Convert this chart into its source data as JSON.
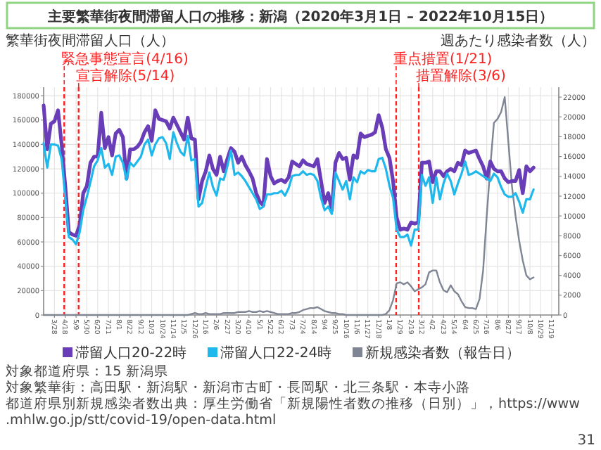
{
  "chart_data": {
    "type": "line",
    "title": "主要繁華街夜間滞留人口の推移：新潟（2020年3月1日 – 2022年10月15日）",
    "ylabel": "繁華街夜間滞留人口（人）",
    "y2label": "週あたり感染者数（人）",
    "x": [
      "2020-03-07",
      "2020-03-14",
      "2020-03-21",
      "2020-03-28",
      "2020-04-04",
      "2020-04-11",
      "2020-04-18",
      "2020-04-25",
      "2020-05-02",
      "2020-05-09",
      "2020-05-16",
      "2020-05-23",
      "2020-05-30",
      "2020-06-06",
      "2020-06-13",
      "2020-06-20",
      "2020-06-27",
      "2020-07-04",
      "2020-07-11",
      "2020-07-18",
      "2020-07-25",
      "2020-08-01",
      "2020-08-08",
      "2020-08-15",
      "2020-08-22",
      "2020-08-29",
      "2020-09-05",
      "2020-09-12",
      "2020-09-19",
      "2020-09-26",
      "2020-10-03",
      "2020-10-10",
      "2020-10-17",
      "2020-10-24",
      "2020-10-31",
      "2020-11-07",
      "2020-11-14",
      "2020-11-21",
      "2020-11-28",
      "2020-12-05",
      "2020-12-12",
      "2020-12-19",
      "2020-12-26",
      "2021-01-02",
      "2021-01-09",
      "2021-01-16",
      "2021-01-23",
      "2021-01-30",
      "2021-02-06",
      "2021-02-13",
      "2021-02-20",
      "2021-02-27",
      "2021-03-06",
      "2021-03-13",
      "2021-03-20",
      "2021-03-27",
      "2021-04-03",
      "2021-04-10",
      "2021-04-17",
      "2021-04-24",
      "2021-05-01",
      "2021-05-08",
      "2021-05-15",
      "2021-05-22",
      "2021-05-29",
      "2021-06-05",
      "2021-06-12",
      "2021-06-19",
      "2021-06-26",
      "2021-07-03",
      "2021-07-10",
      "2021-07-17",
      "2021-07-24",
      "2021-07-31",
      "2021-08-07",
      "2021-08-14",
      "2021-08-21",
      "2021-08-28",
      "2021-09-04",
      "2021-09-11",
      "2021-09-18",
      "2021-09-25",
      "2021-10-02",
      "2021-10-09",
      "2021-10-16",
      "2021-10-23",
      "2021-10-30",
      "2021-11-06",
      "2021-11-13",
      "2021-11-20",
      "2021-11-27",
      "2021-12-04",
      "2021-12-11",
      "2021-12-18",
      "2021-12-25",
      "2022-01-01",
      "2022-01-08",
      "2022-01-15",
      "2022-01-22",
      "2022-01-29",
      "2022-02-05",
      "2022-02-12",
      "2022-02-19",
      "2022-02-26",
      "2022-03-05",
      "2022-03-12",
      "2022-03-19",
      "2022-03-26",
      "2022-04-02",
      "2022-04-09",
      "2022-04-16",
      "2022-04-23",
      "2022-04-30",
      "2022-05-07",
      "2022-05-14",
      "2022-05-21",
      "2022-05-28",
      "2022-06-04",
      "2022-06-11",
      "2022-06-18",
      "2022-06-25",
      "2022-07-02",
      "2022-07-09",
      "2022-07-16",
      "2022-07-23",
      "2022-07-30",
      "2022-08-06",
      "2022-08-13",
      "2022-08-20",
      "2022-08-27",
      "2022-09-03",
      "2022-09-10",
      "2022-09-17",
      "2022-09-24",
      "2022-10-01",
      "2022-10-08",
      "2022-10-15"
    ],
    "series": [
      {
        "name": "滞留人口20-22時",
        "color": "#6a3db8",
        "values": [
          172000,
          136000,
          157000,
          159000,
          168000,
          140000,
          106000,
          68000,
          66000,
          65000,
          74000,
          100000,
          106000,
          125000,
          130000,
          130000,
          166000,
          137000,
          146000,
          131000,
          149000,
          152000,
          146000,
          112000,
          136000,
          136000,
          138000,
          142000,
          150000,
          155000,
          143000,
          168000,
          161000,
          160000,
          159000,
          153000,
          162000,
          156000,
          150000,
          144000,
          162000,
          145000,
          144000,
          95000,
          110000,
          118000,
          131000,
          120000,
          115000,
          130000,
          118000,
          128000,
          137000,
          134000,
          125000,
          130000,
          123000,
          118000,
          112000,
          100000,
          93000,
          90000,
          128000,
          114000,
          108000,
          110000,
          111000,
          109000,
          113000,
          126000,
          124000,
          122000,
          127000,
          124000,
          123000,
          122000,
          128000,
          110000,
          92000,
          100000,
          86000,
          125000,
          133000,
          128000,
          129000,
          111000,
          131000,
          129000,
          149000,
          146000,
          147000,
          148000,
          150000,
          164000,
          154000,
          136000,
          129000,
          110000,
          80000,
          70000,
          71000,
          70000,
          76000,
          75000,
          76000,
          125000,
          125000,
          126000,
          109000,
          118000,
          118000,
          114000,
          118000,
          120000,
          118000,
          125000,
          123000,
          135000,
          133000,
          134000,
          135000,
          128000,
          122000,
          112000,
          126000,
          120000,
          118000,
          118000,
          112000,
          109000,
          110000,
          110000,
          119000,
          100000,
          122000,
          118000,
          121000
        ]
      },
      {
        "name": "滞留人口22-24時",
        "color": "#1fb8ec",
        "values": [
          141000,
          121000,
          140000,
          140000,
          139000,
          128000,
          97000,
          64000,
          62000,
          58000,
          68000,
          86000,
          97000,
          109000,
          122000,
          127000,
          137000,
          121000,
          124000,
          115000,
          130000,
          131000,
          125000,
          111000,
          125000,
          122000,
          126000,
          130000,
          140000,
          144000,
          131000,
          140000,
          145000,
          146000,
          141000,
          128000,
          150000,
          141000,
          134000,
          131000,
          147000,
          127000,
          128000,
          89000,
          92000,
          105000,
          117000,
          105000,
          98000,
          112000,
          111000,
          122000,
          135000,
          115000,
          117000,
          114000,
          110000,
          105000,
          100000,
          95000,
          87000,
          89000,
          99000,
          99000,
          100000,
          100000,
          102000,
          98000,
          104000,
          114000,
          115000,
          115000,
          118000,
          115000,
          116000,
          115000,
          110000,
          96000,
          86000,
          89000,
          83000,
          117000,
          110000,
          103000,
          110000,
          95000,
          113000,
          109000,
          118000,
          116000,
          119000,
          118000,
          118000,
          128000,
          129000,
          120000,
          106000,
          96000,
          70000,
          64000,
          64000,
          66000,
          57000,
          70000,
          70000,
          115000,
          106000,
          113000,
          92000,
          113000,
          95000,
          108000,
          116000,
          110000,
          99000,
          108000,
          116000,
          126000,
          115000,
          116000,
          118000,
          116000,
          114000,
          112000,
          110000,
          116000,
          113000,
          105000,
          99000,
          97000,
          97000,
          100000,
          93000,
          84000,
          95000,
          95000,
          103000
        ]
      },
      {
        "name": "新規感染者数（報告日）",
        "color": "#7f8593",
        "axis": "y2",
        "values": [
          0,
          0,
          0,
          0,
          0,
          0,
          0,
          0,
          0,
          0,
          0,
          0,
          0,
          0,
          0,
          0,
          0,
          0,
          0,
          0,
          0,
          0,
          0,
          0,
          0,
          0,
          0,
          0,
          0,
          0,
          0,
          0,
          0,
          0,
          0,
          0,
          0,
          0,
          0,
          0,
          0,
          100,
          200,
          100,
          100,
          200,
          100,
          100,
          100,
          100,
          200,
          200,
          200,
          200,
          300,
          300,
          300,
          400,
          300,
          300,
          400,
          300,
          400,
          300,
          200,
          100,
          100,
          100,
          100,
          200,
          200,
          300,
          500,
          600,
          700,
          700,
          800,
          600,
          400,
          300,
          200,
          200,
          100,
          100,
          0,
          0,
          0,
          0,
          0,
          0,
          0,
          0,
          0,
          0,
          0,
          100,
          500,
          1500,
          3200,
          3300,
          3100,
          3300,
          2900,
          2400,
          2600,
          2800,
          3100,
          4300,
          4500,
          4500,
          3300,
          2500,
          2300,
          3000,
          2400,
          2100,
          1400,
          800,
          700,
          700,
          600,
          1600,
          4500,
          10000,
          15000,
          19400,
          19800,
          20500,
          22000,
          17500,
          13000,
          10000,
          7500,
          5500,
          4000,
          3600,
          3800
        ]
      }
    ],
    "xlim": [
      "2020-03-07",
      "2022-12-03"
    ],
    "xticks": [
      {
        "value": "2020-03-28",
        "label": "3/28"
      },
      {
        "value": "2020-04-18",
        "label": "4/18"
      },
      {
        "value": "2020-05-09",
        "label": "5/9"
      },
      {
        "value": "2020-05-30",
        "label": "5/30"
      },
      {
        "value": "2020-06-20",
        "label": "6/20"
      },
      {
        "value": "2020-07-11",
        "label": "7/11"
      },
      {
        "value": "2020-08-01",
        "label": "8/1"
      },
      {
        "value": "2020-08-22",
        "label": "8/22"
      },
      {
        "value": "2020-09-12",
        "label": "9/12"
      },
      {
        "value": "2020-10-03",
        "label": "10/3"
      },
      {
        "value": "2020-10-24",
        "label": "10/24"
      },
      {
        "value": "2020-11-14",
        "label": "11/14"
      },
      {
        "value": "2020-12-05",
        "label": "12/5"
      },
      {
        "value": "2020-12-26",
        "label": "12/26"
      },
      {
        "value": "2021-01-16",
        "label": "1/16"
      },
      {
        "value": "2021-02-06",
        "label": "2/6"
      },
      {
        "value": "2021-02-27",
        "label": "2/27"
      },
      {
        "value": "2021-03-20",
        "label": "3/20"
      },
      {
        "value": "2021-04-10",
        "label": "4/10"
      },
      {
        "value": "2021-05-01",
        "label": "5/1"
      },
      {
        "value": "2021-05-22",
        "label": "5/22"
      },
      {
        "value": "2021-06-12",
        "label": "6/12"
      },
      {
        "value": "2021-07-03",
        "label": "7/3"
      },
      {
        "value": "2021-07-24",
        "label": "7/24"
      },
      {
        "value": "2021-08-14",
        "label": "8/14"
      },
      {
        "value": "2021-09-04",
        "label": "9/4"
      },
      {
        "value": "2021-09-25",
        "label": "9/25"
      },
      {
        "value": "2021-10-16",
        "label": "10/16"
      },
      {
        "value": "2021-11-06",
        "label": "11/6"
      },
      {
        "value": "2021-11-27",
        "label": "11/27"
      },
      {
        "value": "2021-12-18",
        "label": "12/18"
      },
      {
        "value": "2022-01-08",
        "label": "1/8"
      },
      {
        "value": "2022-01-29",
        "label": "1/29"
      },
      {
        "value": "2022-02-19",
        "label": "2/19"
      },
      {
        "value": "2022-03-12",
        "label": "3/12"
      },
      {
        "value": "2022-04-02",
        "label": "4/2"
      },
      {
        "value": "2022-04-23",
        "label": "4/23"
      },
      {
        "value": "2022-05-14",
        "label": "5/14"
      },
      {
        "value": "2022-06-04",
        "label": "6/4"
      },
      {
        "value": "2022-06-25",
        "label": "6/25"
      },
      {
        "value": "2022-07-16",
        "label": "7/16"
      },
      {
        "value": "2022-08-06",
        "label": "8/6"
      },
      {
        "value": "2022-08-27",
        "label": "8/27"
      },
      {
        "value": "2022-09-17",
        "label": "9/17"
      },
      {
        "value": "2022-10-08",
        "label": "10/8"
      },
      {
        "value": "2022-10-29",
        "label": "10/29"
      },
      {
        "value": "2022-11-19",
        "label": "11/19"
      }
    ],
    "ylim": [
      0,
      187000
    ],
    "yticks": [
      0,
      20000,
      40000,
      60000,
      80000,
      100000,
      120000,
      140000,
      160000,
      180000
    ],
    "y2lim": [
      0,
      23000
    ],
    "y2ticks": [
      0,
      2000,
      4000,
      6000,
      8000,
      10000,
      12000,
      14000,
      16000,
      18000,
      20000,
      22000
    ],
    "ref_lines": [
      {
        "axis": "x",
        "value": "2020-04-16",
        "label": "緊急事態宣言(4/16)",
        "color": "#ff2020",
        "line_style": "dashed"
      },
      {
        "axis": "x",
        "value": "2020-05-14",
        "label": "宣言解除(5/14)",
        "color": "#ff2020",
        "line_style": "dashed"
      },
      {
        "axis": "x",
        "value": "2022-01-21",
        "label": "重点措置(1/21)",
        "color": "#ff2020",
        "line_style": "dashed"
      },
      {
        "axis": "x",
        "value": "2022-03-06",
        "label": "措置解除(3/6)",
        "color": "#ff2020",
        "line_style": "dashed"
      }
    ],
    "grid": true,
    "legend": "bottom",
    "annotations": [
      "対象都道府県：15 新潟県",
      "対象繁華街：高田駅・新潟駅・新潟市古町・長岡駅・北三条駅・本寺小路",
      "都道府県別新規感染者数出典：厚生労働省「新規陽性者数の推移（日別）」，https://www.mhlw.go.jp/stt/covid-19/open-data.html",
      "31"
    ]
  }
}
